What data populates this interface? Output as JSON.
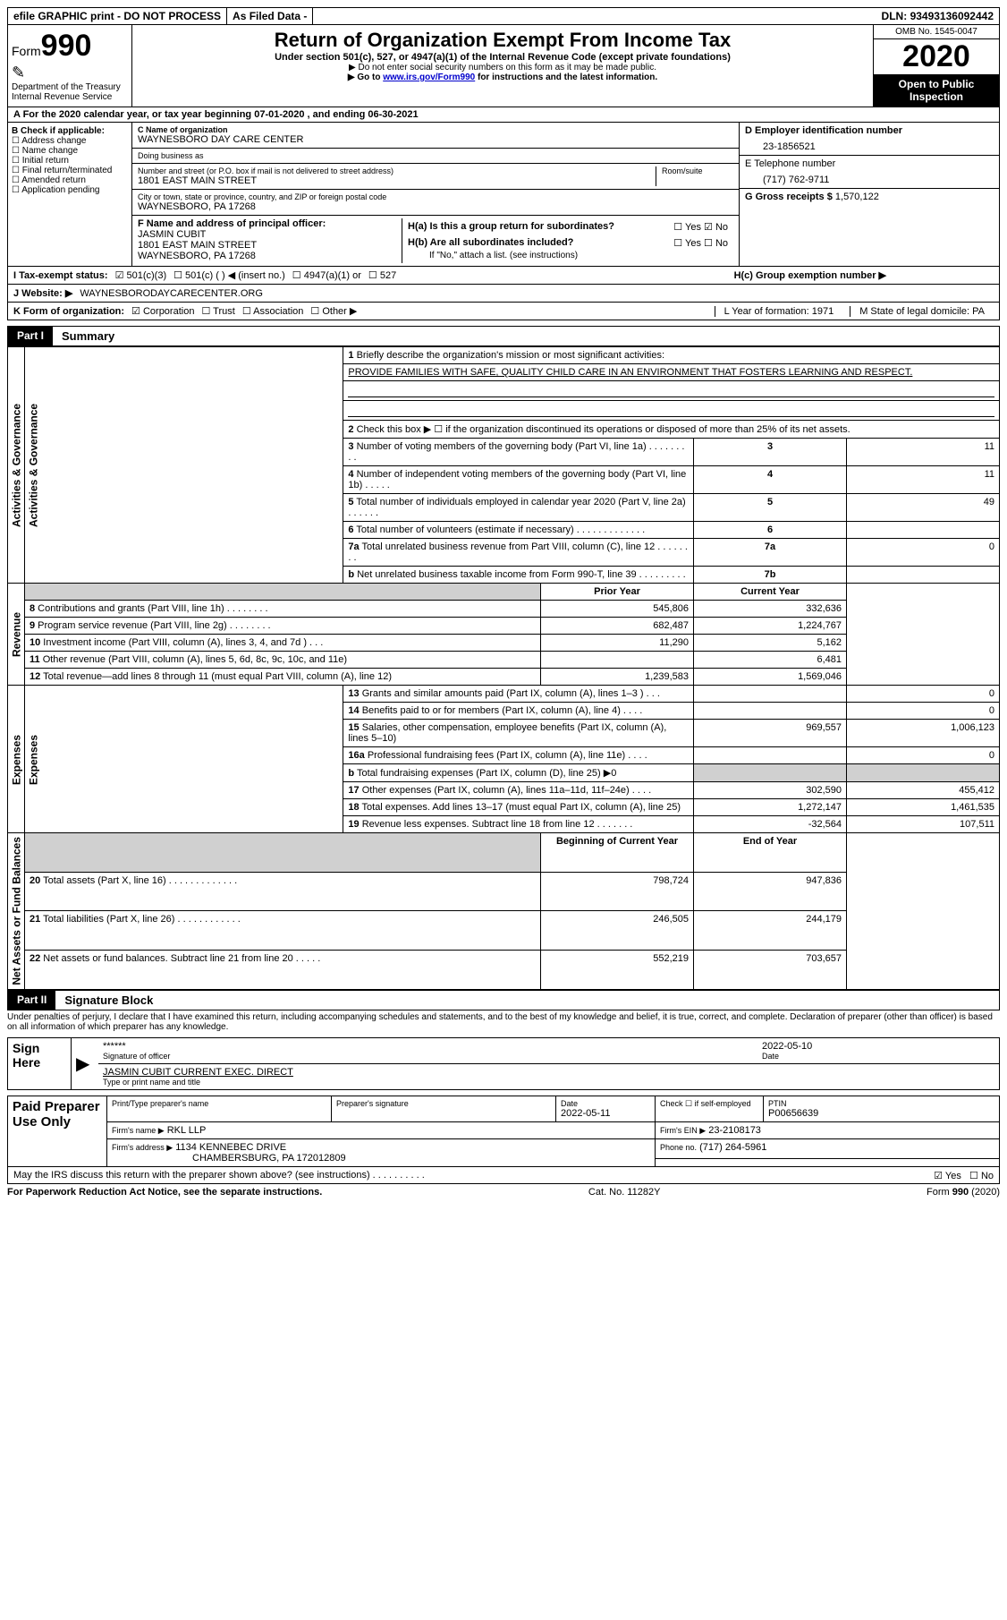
{
  "topbar": {
    "efile": "efile GRAPHIC print - DO NOT PROCESS",
    "asfiled": "As Filed Data -",
    "dln_label": "DLN:",
    "dln": "93493136092442"
  },
  "header": {
    "form_word": "Form",
    "form_no": "990",
    "dept": "Department of the Treasury",
    "irs": "Internal Revenue Service",
    "title": "Return of Organization Exempt From Income Tax",
    "sub1": "Under section 501(c), 527, or 4947(a)(1) of the Internal Revenue Code (except private foundations)",
    "sub2": "▶ Do not enter social security numbers on this form as it may be made public.",
    "sub3_pre": "▶ Go to ",
    "sub3_link": "www.irs.gov/Form990",
    "sub3_post": " for instructions and the latest information.",
    "omb": "OMB No. 1545-0047",
    "year": "2020",
    "open": "Open to Public Inspection"
  },
  "rowA": {
    "text_pre": "A   For the 2020 calendar year, or tax year beginning ",
    "begin": "07-01-2020",
    "mid": " , and ending ",
    "end": "06-30-2021"
  },
  "B": {
    "hdr": "B Check if applicable:",
    "items": [
      "Address change",
      "Name change",
      "Initial return",
      "Final return/terminated",
      "Amended return",
      "Application pending"
    ]
  },
  "C": {
    "name_lbl": "C Name of organization",
    "name": "WAYNESBORO DAY CARE CENTER",
    "dba_lbl": "Doing business as",
    "dba": "",
    "street_lbl": "Number and street (or P.O. box if mail is not delivered to street address)",
    "room_lbl": "Room/suite",
    "street": "1801 EAST MAIN STREET",
    "city_lbl": "City or town, state or province, country, and ZIP or foreign postal code",
    "city": "WAYNESBORO, PA  17268",
    "F_lbl": "F   Name and address of principal officer:",
    "F_name": "JASMIN CUBIT",
    "F_street": "1801 EAST MAIN STREET",
    "F_city": "WAYNESBORO, PA  17268"
  },
  "D": {
    "ein_lbl": "D Employer identification number",
    "ein": "23-1856521",
    "tel_lbl": "E Telephone number",
    "tel": "(717) 762-9711",
    "gross_lbl": "G Gross receipts $",
    "gross": "1,570,122"
  },
  "H": {
    "a": "H(a)  Is this a group return for subordinates?",
    "b": "H(b)  Are all subordinates included?",
    "b_note": "If \"No,\" attach a list. (see instructions)",
    "c": "H(c)  Group exemption number ▶",
    "yes": "Yes",
    "no": "No"
  },
  "I": {
    "lbl": "I   Tax-exempt status:",
    "c3": "501(c)(3)",
    "c": "501(c) (   ) ◀ (insert no.)",
    "a1": "4947(a)(1) or",
    "s527": "527"
  },
  "J": {
    "lbl": "J   Website: ▶",
    "val": "WAYNESBORODAYCARECENTER.ORG"
  },
  "K": {
    "lbl": "K Form of organization:",
    "corp": "Corporation",
    "trust": "Trust",
    "assoc": "Association",
    "other": "Other ▶"
  },
  "LM": {
    "L": "L Year of formation: 1971",
    "M": "M State of legal domicile: PA"
  },
  "part1": {
    "tag": "Part I",
    "ttl": "Summary"
  },
  "summary": {
    "groups": [
      {
        "label": "Activities & Governance",
        "rows": [
          {
            "n": "1",
            "t": "Briefly describe the organization's mission or most significant activities:",
            "full": true,
            "extra": "PROVIDE FAMILIES WITH SAFE, QUALITY CHILD CARE IN AN ENVIRONMENT THAT FOSTERS LEARNING AND RESPECT."
          },
          {
            "n": "2",
            "t": "Check this box ▶ ☐ if the organization discontinued its operations or disposed of more than 25% of its net assets.",
            "full": true
          },
          {
            "n": "3",
            "t": "Number of voting members of the governing body (Part VI, line 1a)   .    .    .    .    .    .    .    .    .",
            "box": "3",
            "v": "11"
          },
          {
            "n": "4",
            "t": "Number of independent voting members of the governing body (Part VI, line 1b)    .    .    .    .    .",
            "box": "4",
            "v": "11"
          },
          {
            "n": "5",
            "t": "Total number of individuals employed in calendar year 2020 (Part V, line 2a)   .    .    .    .    .    .",
            "box": "5",
            "v": "49"
          },
          {
            "n": "6",
            "t": "Total number of volunteers (estimate if necessary)   .    .    .    .    .    .    .    .    .    .    .    .    .",
            "box": "6",
            "v": ""
          },
          {
            "n": "7a",
            "t": "Total unrelated business revenue from Part VIII, column (C), line 12   .    .    .    .    .    .    .    .",
            "box": "7a",
            "v": "0"
          },
          {
            "n": "b",
            "t": "Net unrelated business taxable income from Form 990-T, line 39    .    .    .    .    .    .    .    .    .",
            "box": "7b",
            "v": ""
          }
        ]
      },
      {
        "label": "Revenue",
        "hdr": [
          "Prior Year",
          "Current Year"
        ],
        "rows": [
          {
            "n": "8",
            "t": "Contributions and grants (Part VIII, line 1h)   .    .    .    .    .    .    .    .",
            "p": "545,806",
            "c": "332,636"
          },
          {
            "n": "9",
            "t": "Program service revenue (Part VIII, line 2g)    .    .    .    .    .    .    .    .",
            "p": "682,487",
            "c": "1,224,767"
          },
          {
            "n": "10",
            "t": "Investment income (Part VIII, column (A), lines 3, 4, and 7d )   .    .    .",
            "p": "11,290",
            "c": "5,162"
          },
          {
            "n": "11",
            "t": "Other revenue (Part VIII, column (A), lines 5, 6d, 8c, 9c, 10c, and 11e)",
            "p": "",
            "c": "6,481"
          },
          {
            "n": "12",
            "t": "Total revenue—add lines 8 through 11 (must equal Part VIII, column (A), line 12)",
            "p": "1,239,583",
            "c": "1,569,046"
          }
        ]
      },
      {
        "label": "Expenses",
        "rows": [
          {
            "n": "13",
            "t": "Grants and similar amounts paid (Part IX, column (A), lines 1–3 )   .    .    .",
            "p": "",
            "c": "0"
          },
          {
            "n": "14",
            "t": "Benefits paid to or for members (Part IX, column (A), line 4)   .    .    .    .",
            "p": "",
            "c": "0"
          },
          {
            "n": "15",
            "t": "Salaries, other compensation, employee benefits (Part IX, column (A), lines 5–10)",
            "p": "969,557",
            "c": "1,006,123"
          },
          {
            "n": "16a",
            "t": "Professional fundraising fees (Part IX, column (A), line 11e)   .    .    .    .",
            "p": "",
            "c": "0"
          },
          {
            "n": "b",
            "t": "Total fundraising expenses (Part IX, column (D), line 25) ▶0",
            "greyp": true,
            "greyc": true,
            "small": true
          },
          {
            "n": "17",
            "t": "Other expenses (Part IX, column (A), lines 11a–11d, 11f–24e)   .    .    .    .",
            "p": "302,590",
            "c": "455,412"
          },
          {
            "n": "18",
            "t": "Total expenses. Add lines 13–17 (must equal Part IX, column (A), line 25)",
            "p": "1,272,147",
            "c": "1,461,535"
          },
          {
            "n": "19",
            "t": "Revenue less expenses. Subtract line 18 from line 12 .    .    .    .    .    .    .",
            "p": "-32,564",
            "c": "107,511"
          }
        ]
      },
      {
        "label": "Net Assets or Fund Balances",
        "hdr": [
          "Beginning of Current Year",
          "End of Year"
        ],
        "rows": [
          {
            "n": "20",
            "t": "Total assets (Part X, line 16)   .    .    .    .    .    .    .    .    .    .    .    .    .",
            "p": "798,724",
            "c": "947,836"
          },
          {
            "n": "21",
            "t": "Total liabilities (Part X, line 26)   .    .    .    .    .    .    .    .    .    .    .    .",
            "p": "246,505",
            "c": "244,179"
          },
          {
            "n": "22",
            "t": "Net assets or fund balances. Subtract line 21 from line 20 .    .    .    .    .",
            "p": "552,219",
            "c": "703,657"
          }
        ]
      }
    ]
  },
  "part2": {
    "tag": "Part II",
    "ttl": "Signature Block"
  },
  "perjury": "Under penalties of perjury, I declare that I have examined this return, including accompanying schedules and statements, and to the best of my knowledge and belief, it is true, correct, and complete. Declaration of preparer (other than officer) is based on all information of which preparer has any knowledge.",
  "sign": {
    "here": "Sign Here",
    "stars": "******",
    "sig_lbl": "Signature of officer",
    "date": "2022-05-10",
    "date_lbl": "Date",
    "name": "JASMIN CUBIT  CURRENT EXEC. DIRECT",
    "name_lbl": "Type or print name and title"
  },
  "paid": {
    "hdr": "Paid Preparer Use Only",
    "c1": "Print/Type preparer's name",
    "c2": "Preparer's signature",
    "c3": "Date",
    "c3v": "2022-05-11",
    "c4": "Check ☐ if self-employed",
    "c5": "PTIN",
    "c5v": "P00656639",
    "firm_lbl": "Firm's name   ▶",
    "firm": "RKL LLP",
    "ein_lbl": "Firm's EIN ▶",
    "ein": "23-2108173",
    "addr_lbl": "Firm's address ▶",
    "addr1": "1134 KENNEBEC DRIVE",
    "addr2": "CHAMBERSBURG, PA  172012809",
    "phone_lbl": "Phone no.",
    "phone": "(717) 264-5961"
  },
  "discuss": {
    "q": "May the IRS discuss this return with the preparer shown above? (see instructions)   .    .    .    .    .    .    .    .    .    .",
    "yes": "Yes",
    "no": "No"
  },
  "footer": {
    "l": "For Paperwork Reduction Act Notice, see the separate instructions.",
    "c": "Cat. No. 11282Y",
    "r": "Form 990 (2020)"
  }
}
